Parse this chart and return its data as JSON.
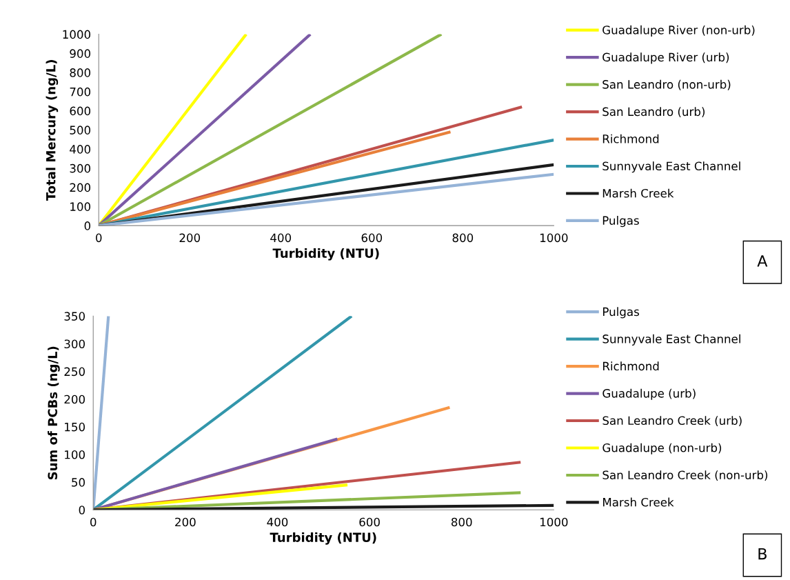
{
  "chart_data": [
    {
      "type": "line",
      "xlabel": "Turbidity (NTU)",
      "ylabel": "Total Mercury (ng/L)",
      "xlim": [
        0,
        1000
      ],
      "xticks": [
        0,
        200,
        400,
        600,
        800,
        1000
      ],
      "ylim": [
        0,
        1000
      ],
      "yticks": [
        0,
        100,
        200,
        300,
        400,
        500,
        600,
        700,
        800,
        900,
        1000
      ],
      "legend": "right",
      "grid": false,
      "annotations": [
        "A"
      ],
      "series": [
        {
          "name": "Guadalupe River (non-urb)",
          "color": "#ffff00",
          "x": [
            0,
            324
          ],
          "values": [
            0,
            1000
          ]
        },
        {
          "name": "Guadalupe River (urb)",
          "color": "#7b5aa6",
          "x": [
            0,
            465
          ],
          "values": [
            0,
            1000
          ]
        },
        {
          "name": "San Leandro (non-urb)",
          "color": "#8db84a",
          "x": [
            0,
            753
          ],
          "values": [
            0,
            1000
          ]
        },
        {
          "name": "San Leandro (urb)",
          "color": "#c0504d",
          "x": [
            0,
            930
          ],
          "values": [
            0,
            620
          ]
        },
        {
          "name": "Richmond",
          "color": "#e8803a",
          "x": [
            0,
            773
          ],
          "values": [
            0,
            490
          ]
        },
        {
          "name": "Sunnyvale East Channel",
          "color": "#3296ab",
          "x": [
            0,
            1000
          ],
          "values": [
            0,
            447
          ]
        },
        {
          "name": "Marsh Creek",
          "color": "#1a1a1a",
          "x": [
            0,
            1000
          ],
          "values": [
            0,
            318
          ]
        },
        {
          "name": "Pulgas",
          "color": "#95b3d7",
          "x": [
            0,
            1000
          ],
          "values": [
            0,
            268
          ]
        }
      ]
    },
    {
      "type": "line",
      "xlabel": "Turbidity (NTU)",
      "ylabel": "Sum of PCBs (ng/L)",
      "xlim": [
        0,
        1000
      ],
      "xticks": [
        0,
        200,
        400,
        600,
        800,
        1000
      ],
      "ylim": [
        0,
        350
      ],
      "yticks": [
        0,
        50,
        100,
        150,
        200,
        250,
        300,
        350
      ],
      "legend": "right",
      "grid": false,
      "annotations": [
        "B"
      ],
      "series": [
        {
          "name": "Pulgas",
          "color": "#95b3d7",
          "x": [
            0,
            33
          ],
          "values": [
            0,
            350
          ]
        },
        {
          "name": "Sunnyvale East Channel",
          "color": "#3296ab",
          "x": [
            0,
            561
          ],
          "values": [
            0,
            350
          ]
        },
        {
          "name": "Richmond",
          "color": "#f79646",
          "x": [
            0,
            774
          ],
          "values": [
            0,
            185
          ]
        },
        {
          "name": "Guadalupe (urb)",
          "color": "#7b5aa6",
          "x": [
            0,
            530
          ],
          "values": [
            0,
            128
          ]
        },
        {
          "name": "San Leandro Creek (urb)",
          "color": "#c0504d",
          "x": [
            0,
            928
          ],
          "values": [
            0,
            86
          ]
        },
        {
          "name": "Guadalupe (non-urb)",
          "color": "#ffff00",
          "x": [
            0,
            552
          ],
          "values": [
            0,
            45
          ]
        },
        {
          "name": "San Leandro Creek (non-urb)",
          "color": "#8db84a",
          "x": [
            0,
            928
          ],
          "values": [
            0,
            31
          ]
        },
        {
          "name": "Marsh Creek",
          "color": "#1a1a1a",
          "x": [
            0,
            1000
          ],
          "values": [
            0,
            8
          ]
        }
      ]
    }
  ]
}
